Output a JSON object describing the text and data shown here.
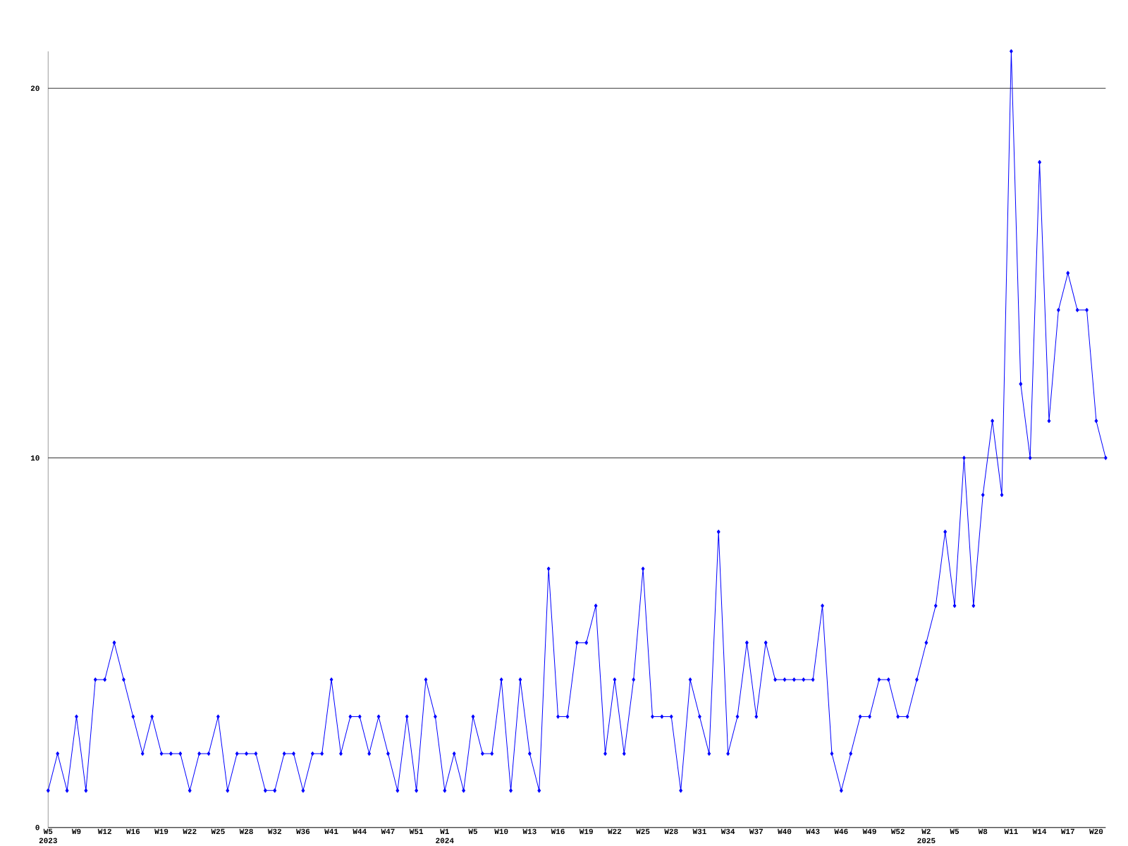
{
  "chart_data": {
    "type": "line",
    "categories": [
      "W5 2023",
      null,
      null,
      "W9",
      null,
      null,
      "W12",
      null,
      null,
      "W16",
      null,
      null,
      "W19",
      null,
      null,
      "W22",
      null,
      null,
      "W25",
      null,
      null,
      "W28",
      null,
      null,
      "W32",
      null,
      null,
      "W36",
      null,
      null,
      "W41",
      null,
      null,
      "W44",
      null,
      null,
      "W47",
      null,
      null,
      "W51",
      null,
      null,
      "W1 2024",
      null,
      null,
      "W5",
      null,
      null,
      "W10",
      null,
      null,
      "W13",
      null,
      null,
      "W16",
      null,
      null,
      "W19",
      null,
      null,
      "W22",
      null,
      null,
      "W25",
      null,
      null,
      "W28",
      null,
      null,
      "W31",
      null,
      null,
      "W34",
      null,
      null,
      "W37",
      null,
      null,
      "W40",
      null,
      null,
      "W43",
      null,
      null,
      "W46",
      null,
      null,
      "W49",
      null,
      null,
      "W52",
      null,
      null,
      "W2 2025",
      null,
      null,
      "W5",
      null,
      null,
      "W8",
      null,
      null,
      "W11",
      null,
      null,
      "W14",
      null,
      null,
      "W17",
      null,
      null,
      "W20",
      null
    ],
    "values": [
      1,
      2,
      1,
      3,
      1,
      4,
      4,
      5,
      4,
      3,
      2,
      3,
      2,
      2,
      2,
      1,
      2,
      2,
      3,
      1,
      2,
      2,
      2,
      1,
      1,
      2,
      2,
      1,
      2,
      2,
      4,
      2,
      3,
      3,
      2,
      3,
      2,
      1,
      3,
      1,
      4,
      3,
      1,
      2,
      1,
      3,
      2,
      2,
      4,
      1,
      4,
      2,
      1,
      7,
      3,
      3,
      5,
      5,
      6,
      2,
      4,
      2,
      4,
      7,
      3,
      3,
      3,
      1,
      4,
      3,
      2,
      8,
      2,
      3,
      5,
      3,
      5,
      4,
      4,
      4,
      4,
      4,
      6,
      2,
      1,
      2,
      3,
      3,
      4,
      4,
      3,
      3,
      4,
      5,
      6,
      8,
      6,
      10,
      6,
      9,
      11,
      9,
      21,
      12,
      10,
      18,
      11,
      14,
      15,
      14,
      14,
      11,
      10
    ],
    "color": "#0000ff",
    "ylim": [
      0,
      21
    ],
    "yticks": [
      0,
      10,
      20
    ],
    "grid": "y",
    "marker": "diamond",
    "line_style": "solid"
  }
}
